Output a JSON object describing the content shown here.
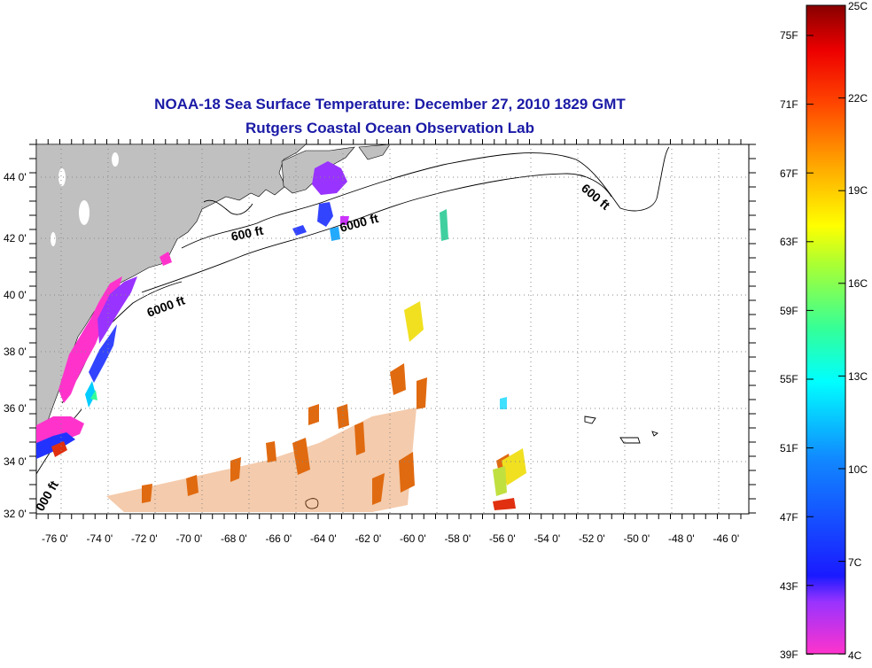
{
  "title": {
    "line1": "NOAA-18 Sea Surface Temperature:  December 27, 2010 1829 GMT",
    "line2": "Rutgers Coastal Ocean Observation Lab"
  },
  "axes": {
    "lon_labels": [
      "-76 0'",
      "-74 0'",
      "-72 0'",
      "-70 0'",
      "-68 0'",
      "-66 0'",
      "-64 0'",
      "-62 0'",
      "-60 0'",
      "-58 0'",
      "-56 0'",
      "-54 0'",
      "-52 0'",
      "-50 0'",
      "-48 0'",
      "-46 0'"
    ],
    "lat_labels": [
      "44 0'",
      "42 0'",
      "40 0'",
      "38 0'",
      "36 0'",
      "34 0'",
      "32 0'"
    ],
    "lon_range": [
      -77,
      -44.5
    ],
    "lat_range": [
      32,
      45
    ]
  },
  "contours": {
    "labels": [
      "600 ft",
      "6000 ft",
      "6000 ft",
      "600 ft",
      "000 ft"
    ]
  },
  "colorbar": {
    "fahrenheit": [
      "75F",
      "71F",
      "67F",
      "63F",
      "59F",
      "55F",
      "51F",
      "47F",
      "43F",
      "39F"
    ],
    "celsius": [
      "25C",
      "22C",
      "19C",
      "16C",
      "13C",
      "10C",
      "7C",
      "4C"
    ],
    "range_c": [
      4,
      25
    ]
  },
  "colors": {
    "land": "#c0c0c0",
    "title": "#1a1aa6",
    "warm": "#e06a10",
    "cold": "#ff33cc"
  }
}
